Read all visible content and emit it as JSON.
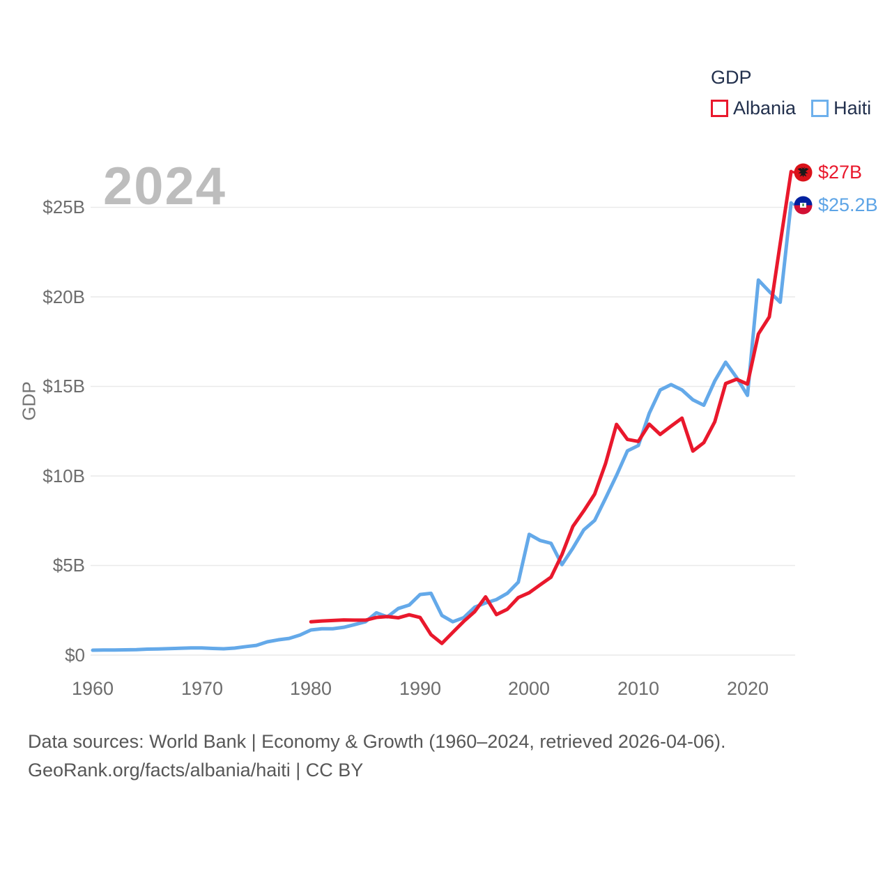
{
  "watermark_year": "2024",
  "legend": {
    "title": "GDP",
    "items": [
      {
        "label": "Albania",
        "color": "#e9182c"
      },
      {
        "label": "Haiti",
        "color": "#6db0ec"
      }
    ]
  },
  "y_axis": {
    "title": "GDP",
    "ticks": [
      "$0",
      "$5B",
      "$10B",
      "$15B",
      "$20B",
      "$25B"
    ]
  },
  "x_axis": {
    "ticks": [
      "1960",
      "1970",
      "1980",
      "1990",
      "2000",
      "2010",
      "2020"
    ]
  },
  "end_labels": [
    {
      "series": "Albania",
      "value": "$27B",
      "flag": "albania-flag",
      "color": "#e9182c"
    },
    {
      "series": "Haiti",
      "value": "$25.2B",
      "flag": "haiti-flag",
      "color": "#5da4e6"
    }
  ],
  "footer": {
    "line1": "Data sources: World Bank | Economy & Growth (1960–2024, retrieved 2026-04-06).",
    "line2": "GeoRank.org/facts/albania/haiti | CC BY"
  },
  "chart_data": {
    "type": "line",
    "title": "GDP",
    "xlabel": "",
    "ylabel": "GDP",
    "xlim": [
      1960,
      2024
    ],
    "ylim": [
      0,
      27.5
    ],
    "y_gridlines": [
      0,
      5,
      10,
      15,
      20,
      25
    ],
    "grid": "horizontal-only",
    "legend_position": "top-right",
    "x": [
      1960,
      1961,
      1962,
      1963,
      1964,
      1965,
      1966,
      1967,
      1968,
      1969,
      1970,
      1971,
      1972,
      1973,
      1974,
      1975,
      1976,
      1977,
      1978,
      1979,
      1980,
      1981,
      1982,
      1983,
      1984,
      1985,
      1986,
      1987,
      1988,
      1989,
      1990,
      1991,
      1992,
      1993,
      1994,
      1995,
      1996,
      1997,
      1998,
      1999,
      2000,
      2001,
      2002,
      2003,
      2004,
      2005,
      2006,
      2007,
      2008,
      2009,
      2010,
      2011,
      2012,
      2013,
      2014,
      2015,
      2016,
      2017,
      2018,
      2019,
      2020,
      2021,
      2022,
      2023,
      2024
    ],
    "unit": "billion USD",
    "series": [
      {
        "name": "Albania",
        "color": "#e9182c",
        "end_label": "$27B",
        "end_value": 27.0,
        "values": [
          null,
          null,
          null,
          null,
          null,
          null,
          null,
          null,
          null,
          null,
          null,
          null,
          null,
          null,
          null,
          null,
          null,
          null,
          null,
          null,
          1.86,
          1.9,
          1.93,
          1.96,
          1.95,
          1.95,
          2.1,
          2.15,
          2.08,
          2.25,
          2.1,
          1.14,
          0.65,
          1.27,
          1.88,
          2.42,
          3.25,
          2.26,
          2.56,
          3.21,
          3.48,
          3.92,
          4.35,
          5.61,
          7.18,
          8.05,
          8.99,
          10.7,
          12.88,
          12.04,
          11.93,
          12.89,
          12.32,
          12.78,
          13.23,
          11.39,
          11.86,
          13.02,
          15.16,
          15.4,
          15.13,
          17.93,
          18.88,
          22.98,
          27.0
        ]
      },
      {
        "name": "Haiti",
        "color": "#64a9e9",
        "end_label": "$25.2B",
        "end_value": 25.2,
        "values": [
          0.27,
          0.28,
          0.28,
          0.29,
          0.3,
          0.33,
          0.34,
          0.36,
          0.38,
          0.4,
          0.4,
          0.37,
          0.35,
          0.39,
          0.47,
          0.54,
          0.74,
          0.85,
          0.93,
          1.12,
          1.4,
          1.47,
          1.47,
          1.55,
          1.7,
          1.86,
          2.36,
          2.13,
          2.6,
          2.79,
          3.38,
          3.45,
          2.21,
          1.86,
          2.09,
          2.67,
          2.91,
          3.1,
          3.45,
          4.07,
          6.74,
          6.4,
          6.24,
          5.05,
          5.97,
          6.99,
          7.52,
          8.76,
          10.03,
          11.4,
          11.7,
          13.5,
          14.8,
          15.1,
          14.8,
          14.25,
          13.95,
          15.3,
          16.35,
          15.5,
          14.5,
          20.94,
          20.3,
          19.7,
          25.25
        ]
      }
    ]
  }
}
